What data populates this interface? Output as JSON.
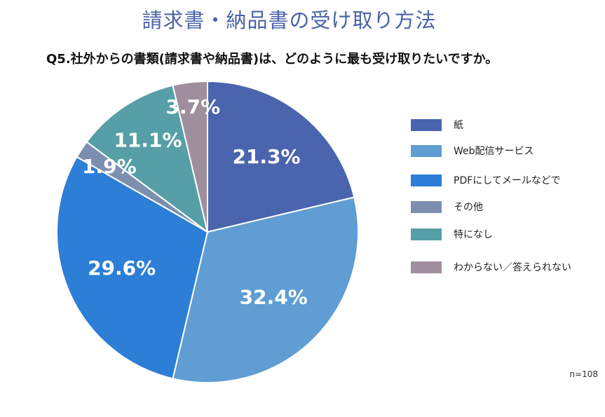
{
  "title": "請求書・納品書の受け取り方法",
  "question": "Q5.社外からの書類(請求書や納品書)は、どのように最も受け取りたいですか。",
  "sample_size": "n=108",
  "chart_data": {
    "type": "pie",
    "title": "請求書・納品書の受け取り方法",
    "start_angle_deg": 0,
    "direction": "clockwise",
    "legend_position": "right",
    "slices": [
      {
        "label": "紙",
        "value": 21.3,
        "display": "21.3%",
        "color": "#4a64ad"
      },
      {
        "label": "Web配信サービス",
        "value": 32.4,
        "display": "32.4%",
        "color": "#5f9dd2"
      },
      {
        "label": "PDFにしてメールなどで",
        "value": 29.6,
        "display": "29.6%",
        "color": "#2c7ed6"
      },
      {
        "label": "その他",
        "value": 1.9,
        "display": "1.9%",
        "color": "#7d8fb0"
      },
      {
        "label": "特になし",
        "value": 11.1,
        "display": "11.1%",
        "color": "#579fa6"
      },
      {
        "label": "わからない／答えられない",
        "value": 3.7,
        "display": "3.7%",
        "color": "#9f8e9e"
      }
    ]
  }
}
